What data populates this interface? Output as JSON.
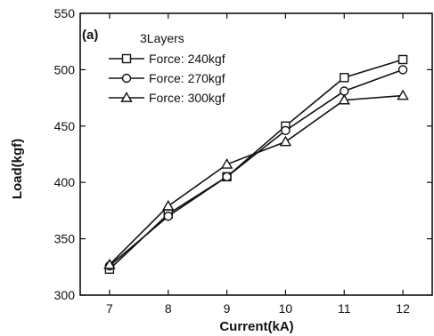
{
  "chart_data": {
    "type": "line",
    "panel_label": "(a)",
    "legend_title": "3Layers",
    "legend_position": "top-left",
    "xlabel": "Current(kA)",
    "ylabel": "Load(kgf)",
    "x": [
      7,
      8,
      9,
      10,
      11,
      12
    ],
    "xlim": [
      6.5,
      12.5
    ],
    "ylim": [
      300,
      550
    ],
    "xticks": [
      7,
      8,
      9,
      10,
      11,
      12
    ],
    "yticks": [
      300,
      350,
      400,
      450,
      500,
      550
    ],
    "grid": false,
    "series": [
      {
        "name": "Force: 240kgf",
        "marker": "square",
        "values": [
          323,
          372,
          405,
          450,
          493,
          509
        ]
      },
      {
        "name": "Force: 270kgf",
        "marker": "circle",
        "values": [
          326,
          370,
          405,
          446,
          481,
          500
        ]
      },
      {
        "name": "Force: 300kgf",
        "marker": "triangle",
        "values": [
          327,
          379,
          416,
          436,
          473,
          477
        ]
      }
    ]
  }
}
